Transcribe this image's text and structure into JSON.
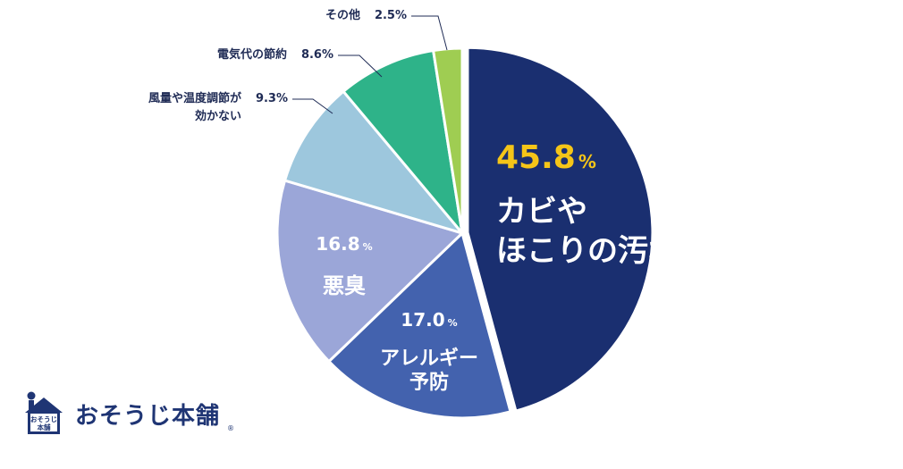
{
  "chart_data": {
    "type": "pie",
    "slices": [
      {
        "label": "カビや\nほこりの汚れ",
        "value": 45.8,
        "color": "#1a2f70",
        "label_style": "inside",
        "value_color": "#f5c518"
      },
      {
        "label": "アレルギー\n予防",
        "value": 17.0,
        "color": "#4362ae",
        "label_style": "inside",
        "value_color": "#ffffff"
      },
      {
        "label": "悪臭",
        "value": 16.8,
        "color": "#9ba6d8",
        "label_style": "inside",
        "value_color": "#ffffff"
      },
      {
        "label": "風量や温度調節が\n効かない",
        "value": 9.3,
        "color": "#9dc7dd",
        "label_style": "outside",
        "value_color": "#1f2b55"
      },
      {
        "label": "電気代の節約",
        "value": 8.6,
        "color": "#2eb389",
        "label_style": "outside",
        "value_color": "#1f2b55"
      },
      {
        "label": "その他",
        "value": 2.5,
        "color": "#9fcd52",
        "label_style": "outside",
        "value_color": "#1f2b55"
      }
    ],
    "percent_sign": "%"
  },
  "logo": {
    "name": "おそうじ本舗",
    "badge_lines": [
      "おそうじ",
      "本舗"
    ],
    "reg_mark": "®",
    "color": "#1f3574"
  }
}
